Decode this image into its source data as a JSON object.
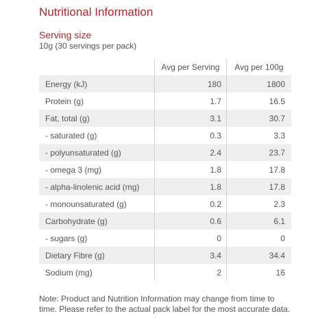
{
  "title": "Nutritional Information",
  "serving": {
    "label": "Serving size",
    "value": "10g (30 servings per pack)"
  },
  "table": {
    "headers": [
      "",
      "Avg per Serving",
      "Avg per 100g"
    ],
    "rows": [
      {
        "name": "Energy (kJ)",
        "per_serving": "180",
        "per_100g": "1800"
      },
      {
        "name": "Protein (g)",
        "per_serving": "1.7",
        "per_100g": "16.5"
      },
      {
        "name": "Fat, total (g)",
        "per_serving": "3.1",
        "per_100g": "30.7"
      },
      {
        "name": "- saturated (g)",
        "per_serving": "0.3",
        "per_100g": "3.3"
      },
      {
        "name": "- polyunsaturated (g)",
        "per_serving": "2.4",
        "per_100g": "23.7"
      },
      {
        "name": "- omega 3 (mg)",
        "per_serving": "1.8",
        "per_100g": "17.8"
      },
      {
        "name": "- alpha-linolenic acid (mg)",
        "per_serving": "1.8",
        "per_100g": "17.8"
      },
      {
        "name": "- monounsaturated (g)",
        "per_serving": "0.2",
        "per_100g": "2.3"
      },
      {
        "name": "Carbohydrate (g)",
        "per_serving": "0.6",
        "per_100g": "6.1"
      },
      {
        "name": "- sugars (g)",
        "per_serving": "0",
        "per_100g": "0"
      },
      {
        "name": "Dietary Fibre (g)",
        "per_serving": "3.4",
        "per_100g": "34.4"
      },
      {
        "name": "Sodium (mg)",
        "per_serving": "2",
        "per_100g": "16"
      }
    ]
  },
  "note": "Note: Product and Nutrition Information may change from time to time. Please refer to the actual pack label for the most accurate data.",
  "colors": {
    "accent": "#b5252b",
    "text": "#555555",
    "row_shade": "#eeeeee",
    "divider": "#d0d0d0"
  }
}
